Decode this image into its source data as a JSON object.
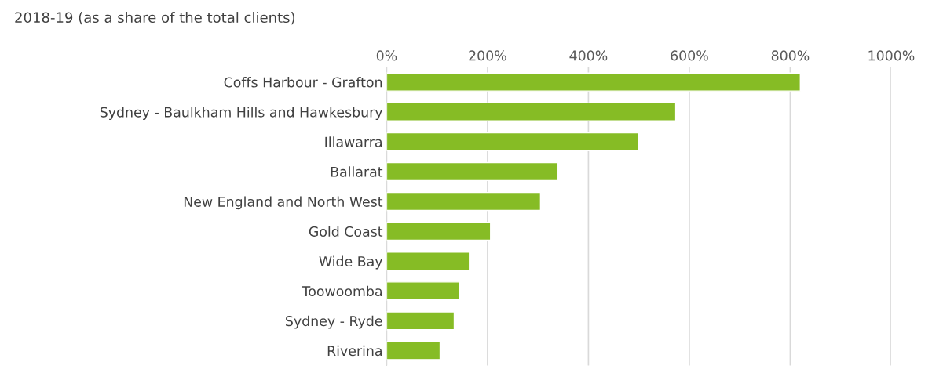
{
  "chart_data": {
    "type": "bar",
    "orientation": "horizontal",
    "title": "2018-19 (as a share of the total clients)",
    "categories": [
      "Coffs Harbour - Grafton",
      "Sydney - Baulkham Hills and Hawkesbury",
      "Illawarra",
      "Ballarat",
      "New England and North West",
      "Gold Coast",
      "Wide Bay",
      "Toowoomba",
      "Sydney - Ryde",
      "Riverina"
    ],
    "values": [
      820,
      573,
      500,
      339,
      305,
      206,
      164,
      144,
      134,
      106
    ],
    "color": "#86bc25",
    "xlim": [
      0,
      1000
    ],
    "xticks": [
      {
        "value": 0,
        "label": "0%"
      },
      {
        "value": 200,
        "label": "200%"
      },
      {
        "value": 400,
        "label": "400%"
      },
      {
        "value": 600,
        "label": "600%"
      },
      {
        "value": 800,
        "label": "800%"
      },
      {
        "value": 1000,
        "label": "1000%"
      }
    ],
    "grid": "x"
  }
}
